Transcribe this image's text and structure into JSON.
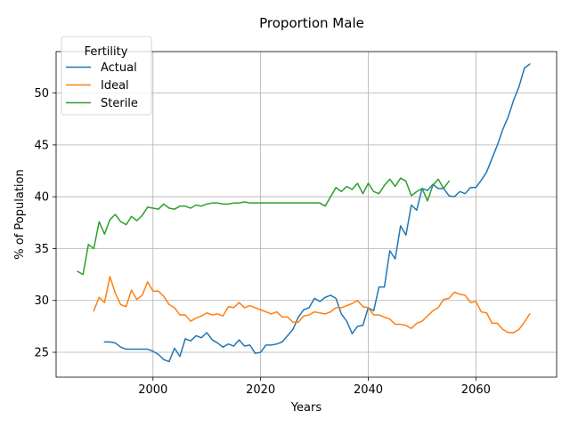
{
  "chart_data": {
    "type": "line",
    "title": "Proportion Male",
    "xlabel": "Years",
    "ylabel": "% of Population",
    "xlim": [
      1982,
      2075
    ],
    "ylim": [
      22.6,
      54
    ],
    "xticks": [
      2000,
      2020,
      2040,
      2060
    ],
    "yticks": [
      25,
      30,
      35,
      40,
      45,
      50
    ],
    "grid": true,
    "legend": {
      "title": "Fertility",
      "placement": "upper-left"
    },
    "series": [
      {
        "name": "Actual",
        "color": "#1f77b4",
        "x": [
          1991,
          1992,
          1993,
          1994,
          1995,
          1996,
          1997,
          1998,
          1999,
          2000,
          2001,
          2002,
          2003,
          2004,
          2005,
          2006,
          2007,
          2008,
          2009,
          2010,
          2011,
          2012,
          2013,
          2014,
          2015,
          2016,
          2017,
          2018,
          2019,
          2020,
          2021,
          2022,
          2023,
          2024,
          2025,
          2026,
          2027,
          2028,
          2029,
          2030,
          2031,
          2032,
          2033,
          2034,
          2035,
          2036,
          2037,
          2038,
          2039,
          2040,
          2041,
          2042,
          2043,
          2044,
          2045,
          2046,
          2047,
          2048,
          2049,
          2050,
          2051,
          2052,
          2053,
          2054,
          2055,
          2056,
          2057,
          2058,
          2059,
          2060,
          2061,
          2062,
          2063,
          2064,
          2065,
          2066,
          2067,
          2068,
          2069,
          2070
        ],
        "y": [
          26.0,
          26.0,
          25.9,
          25.5,
          25.3,
          25.3,
          25.3,
          25.3,
          25.3,
          25.1,
          24.8,
          24.3,
          24.1,
          25.4,
          24.6,
          26.3,
          26.1,
          26.6,
          26.4,
          26.9,
          26.2,
          25.9,
          25.5,
          25.8,
          25.6,
          26.2,
          25.6,
          25.7,
          24.9,
          25.0,
          25.7,
          25.7,
          25.8,
          26.0,
          26.6,
          27.2,
          28.4,
          29.1,
          29.3,
          30.2,
          29.9,
          30.3,
          30.5,
          30.2,
          28.7,
          28.0,
          26.8,
          27.5,
          27.6,
          29.3,
          29.0,
          31.3,
          31.3,
          34.8,
          34.0,
          37.2,
          36.3,
          39.2,
          38.7,
          40.8,
          40.6,
          41.2,
          40.8,
          40.8,
          40.1,
          40.0,
          40.5,
          40.3,
          40.9,
          40.9,
          41.6,
          42.4,
          43.7,
          45.0,
          46.5,
          47.7,
          49.3,
          50.6,
          52.4,
          52.8
        ]
      },
      {
        "name": "Ideal",
        "color": "#ff7f0e",
        "x": [
          1989,
          1990,
          1991,
          1992,
          1993,
          1994,
          1995,
          1996,
          1997,
          1998,
          1999,
          2000,
          2001,
          2002,
          2003,
          2004,
          2005,
          2006,
          2007,
          2008,
          2009,
          2010,
          2011,
          2012,
          2013,
          2014,
          2015,
          2016,
          2017,
          2018,
          2019,
          2020,
          2021,
          2022,
          2023,
          2024,
          2025,
          2026,
          2027,
          2028,
          2029,
          2030,
          2031,
          2032,
          2033,
          2034,
          2035,
          2036,
          2037,
          2038,
          2039,
          2040,
          2041,
          2042,
          2043,
          2044,
          2045,
          2046,
          2047,
          2048,
          2049,
          2050,
          2051,
          2052,
          2053,
          2054,
          2055,
          2056,
          2057,
          2058,
          2059,
          2060,
          2061,
          2062,
          2063,
          2064,
          2065,
          2066,
          2067,
          2068,
          2069,
          2070
        ],
        "y": [
          29.0,
          30.3,
          29.8,
          32.3,
          30.7,
          29.6,
          29.4,
          31.0,
          30.1,
          30.5,
          31.8,
          30.9,
          30.9,
          30.4,
          29.6,
          29.3,
          28.6,
          28.6,
          28.0,
          28.3,
          28.5,
          28.8,
          28.6,
          28.7,
          28.5,
          29.4,
          29.3,
          29.8,
          29.3,
          29.5,
          29.3,
          29.1,
          28.9,
          28.7,
          28.9,
          28.4,
          28.4,
          27.9,
          27.9,
          28.5,
          28.6,
          28.9,
          28.8,
          28.7,
          28.9,
          29.3,
          29.3,
          29.5,
          29.7,
          30.0,
          29.4,
          29.3,
          28.6,
          28.6,
          28.4,
          28.2,
          27.7,
          27.7,
          27.6,
          27.3,
          27.8,
          28.0,
          28.5,
          29.0,
          29.3,
          30.1,
          30.2,
          30.8,
          30.6,
          30.5,
          29.8,
          29.9,
          28.9,
          28.8,
          27.8,
          27.8,
          27.2,
          26.9,
          26.9,
          27.2,
          27.9,
          28.7
        ]
      },
      {
        "name": "Sterile",
        "color": "#2ca02c",
        "x": [
          1986,
          1987,
          1988,
          1989,
          1990,
          1991,
          1992,
          1993,
          1994,
          1995,
          1996,
          1997,
          1998,
          1999,
          2000,
          2001,
          2002,
          2003,
          2004,
          2005,
          2006,
          2007,
          2008,
          2009,
          2010,
          2011,
          2012,
          2013,
          2014,
          2015,
          2016,
          2017,
          2018,
          2019,
          2020,
          2021,
          2022,
          2023,
          2024,
          2025,
          2026,
          2027,
          2028,
          2029,
          2030,
          2031,
          2032,
          2033,
          2034,
          2035,
          2036,
          2037,
          2038,
          2039,
          2040,
          2041,
          2042,
          2043,
          2044,
          2045,
          2046,
          2047,
          2048,
          2049,
          2050,
          2051,
          2052,
          2053,
          2054,
          2055
        ],
        "y": [
          32.8,
          32.5,
          35.4,
          35.0,
          37.6,
          36.4,
          37.8,
          38.3,
          37.6,
          37.3,
          38.1,
          37.7,
          38.2,
          39.0,
          38.9,
          38.8,
          39.3,
          38.9,
          38.8,
          39.1,
          39.1,
          38.9,
          39.2,
          39.1,
          39.3,
          39.4,
          39.4,
          39.3,
          39.3,
          39.4,
          39.4,
          39.5,
          39.4,
          39.4,
          39.4,
          39.4,
          39.4,
          39.4,
          39.4,
          39.4,
          39.4,
          39.4,
          39.4,
          39.4,
          39.4,
          39.4,
          39.1,
          40.0,
          40.9,
          40.5,
          41.0,
          40.7,
          41.3,
          40.3,
          41.3,
          40.5,
          40.3,
          41.1,
          41.7,
          41.0,
          41.8,
          41.5,
          40.1,
          40.5,
          40.8,
          39.6,
          41.1,
          41.7,
          40.8,
          41.5
        ]
      }
    ]
  }
}
